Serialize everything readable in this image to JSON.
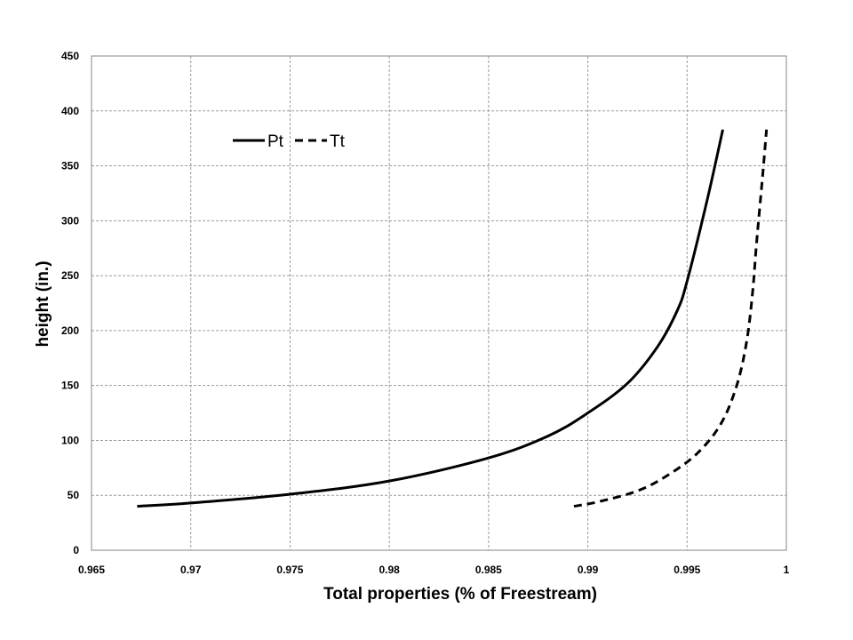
{
  "chart_data": {
    "type": "line",
    "title": "",
    "xlabel": "Total properties (% of Freestream)",
    "ylabel": "height (in.)",
    "xlim": [
      0.965,
      1
    ],
    "ylim": [
      0,
      450
    ],
    "x_ticks": [
      "0.965",
      "0.97",
      "0.975",
      "0.98",
      "0.985",
      "0.99",
      "0.995",
      "1"
    ],
    "y_ticks": [
      "0",
      "50",
      "100",
      "150",
      "200",
      "250",
      "300",
      "350",
      "400",
      "450"
    ],
    "grid": true,
    "legend_position": "top-left",
    "series": [
      {
        "name": "Pt",
        "style": "solid",
        "color": "#000000",
        "points": [
          [
            0.9673,
            40
          ],
          [
            0.97,
            43
          ],
          [
            0.975,
            51
          ],
          [
            0.98,
            63
          ],
          [
            0.985,
            84
          ],
          [
            0.988,
            104
          ],
          [
            0.99,
            125
          ],
          [
            0.992,
            152
          ],
          [
            0.9935,
            185
          ],
          [
            0.9945,
            218
          ],
          [
            0.995,
            245
          ],
          [
            0.996,
            318
          ],
          [
            0.9968,
            383
          ]
        ]
      },
      {
        "name": "Tt",
        "style": "dashed",
        "color": "#000000",
        "points": [
          [
            0.9893,
            40
          ],
          [
            0.9905,
            44
          ],
          [
            0.9925,
            54
          ],
          [
            0.994,
            68
          ],
          [
            0.9955,
            88
          ],
          [
            0.9967,
            115
          ],
          [
            0.9975,
            150
          ],
          [
            0.998,
            190
          ],
          [
            0.9983,
            235
          ],
          [
            0.9985,
            280
          ],
          [
            0.9988,
            340
          ],
          [
            0.999,
            383
          ]
        ]
      }
    ]
  }
}
